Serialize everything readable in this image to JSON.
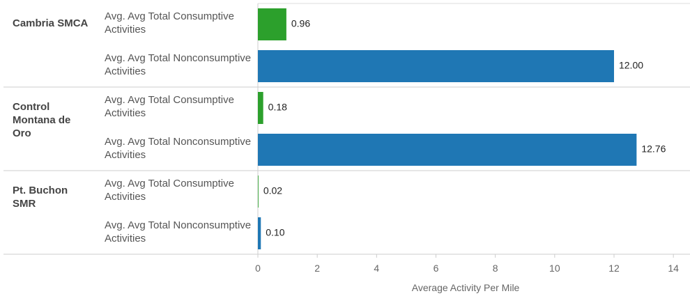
{
  "chart_data": {
    "type": "bar",
    "orientation": "horizontal",
    "categories": [
      "Cambria SMCA",
      "Control Montana de Oro",
      "Pt. Buchon SMR"
    ],
    "series": [
      {
        "name": "Avg. Avg Total Consumptive Activities",
        "color": "#2ca02c",
        "values": [
          0.96,
          0.18,
          0.02
        ],
        "value_labels": [
          "0.96",
          "0.18",
          "0.02"
        ]
      },
      {
        "name": "Avg. Avg Total Nonconsumptive Activities",
        "color": "#1f77b4",
        "values": [
          12,
          12.76,
          0.1
        ],
        "value_labels": [
          "12.00",
          "12.76",
          "0.10"
        ]
      }
    ],
    "x_label": "Average Activity Per Mile",
    "xlim": [
      0,
      14.56
    ],
    "xticks": [
      0,
      2,
      4,
      6,
      8,
      10,
      12,
      14
    ]
  }
}
